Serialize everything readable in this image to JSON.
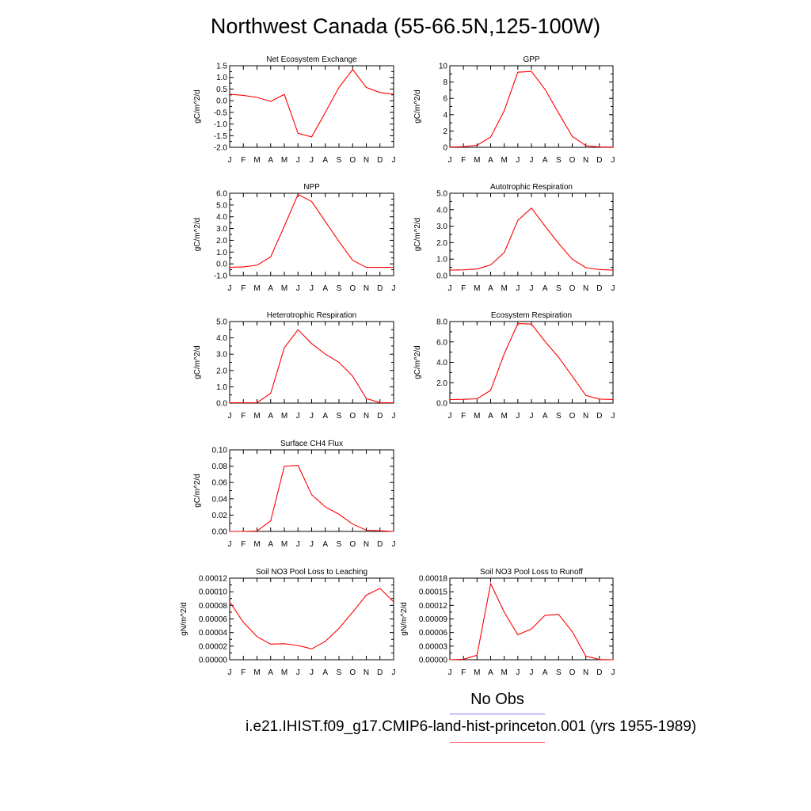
{
  "title": "Northwest Canada (55-66.5N,125-100W)",
  "legend": {
    "no_obs_label": "No Obs",
    "no_obs_color": "#7b7bf0",
    "case_label": "i.e21.IHIST.f09_g17.CMIP6-land-hist-princeton.001 (yrs 1955-1989)",
    "case_color": "#ff8080"
  },
  "line_color": "#ff0000",
  "chart_data": [
    {
      "type": "line",
      "title": "Net Ecosystem Exchange",
      "ylabel": "gC/m^2/d",
      "x_ticks": [
        "J",
        "F",
        "M",
        "A",
        "M",
        "J",
        "J",
        "A",
        "S",
        "O",
        "N",
        "D",
        "J"
      ],
      "ylim": [
        -2.0,
        1.5
      ],
      "y_ticks": [
        "-2.0",
        "-1.5",
        "-1.0",
        "-0.5",
        "0.0",
        "0.5",
        "1.0",
        "1.5"
      ],
      "values": [
        0.28,
        0.23,
        0.14,
        -0.03,
        0.27,
        -1.4,
        -1.55,
        -0.5,
        0.57,
        1.34,
        0.57,
        0.35,
        0.28
      ]
    },
    {
      "type": "line",
      "title": "GPP",
      "ylabel": "gC/m^2/d",
      "x_ticks": [
        "J",
        "F",
        "M",
        "A",
        "M",
        "J",
        "J",
        "A",
        "S",
        "O",
        "N",
        "D",
        "J"
      ],
      "ylim": [
        0,
        10
      ],
      "y_ticks": [
        "0",
        "2",
        "4",
        "6",
        "8",
        "10"
      ],
      "values": [
        0.03,
        0.08,
        0.25,
        1.25,
        4.5,
        9.2,
        9.3,
        7.1,
        4.2,
        1.35,
        0.2,
        0.04,
        0.03
      ]
    },
    {
      "type": "line",
      "title": "NPP",
      "ylabel": "gC/m^2/d",
      "x_ticks": [
        "J",
        "F",
        "M",
        "A",
        "M",
        "J",
        "J",
        "A",
        "S",
        "O",
        "N",
        "D",
        "J"
      ],
      "ylim": [
        -1.0,
        6.0
      ],
      "y_ticks": [
        "-1.0",
        "0.0",
        "1.0",
        "2.0",
        "3.0",
        "4.0",
        "5.0",
        "6.0"
      ],
      "values": [
        -0.3,
        -0.25,
        -0.12,
        0.6,
        3.2,
        5.9,
        5.3,
        3.6,
        1.9,
        0.3,
        -0.3,
        -0.3,
        -0.3
      ]
    },
    {
      "type": "line",
      "title": "Autotrophic Respiration",
      "ylabel": "gC/m^2/d",
      "x_ticks": [
        "J",
        "F",
        "M",
        "A",
        "M",
        "J",
        "J",
        "A",
        "S",
        "O",
        "N",
        "D",
        "J"
      ],
      "ylim": [
        0,
        5.0
      ],
      "y_ticks": [
        "0.0",
        "1.0",
        "2.0",
        "3.0",
        "4.0",
        "5.0"
      ],
      "values": [
        0.33,
        0.35,
        0.4,
        0.65,
        1.4,
        3.35,
        4.1,
        3.0,
        1.95,
        1.0,
        0.48,
        0.37,
        0.33
      ]
    },
    {
      "type": "line",
      "title": "Heterotrophic Respiration",
      "ylabel": "gC/m^2/d",
      "x_ticks": [
        "J",
        "F",
        "M",
        "A",
        "M",
        "J",
        "J",
        "A",
        "S",
        "O",
        "N",
        "D",
        "J"
      ],
      "ylim": [
        0,
        5.0
      ],
      "y_ticks": [
        "0.0",
        "1.0",
        "2.0",
        "3.0",
        "4.0",
        "5.0"
      ],
      "values": [
        0.02,
        0.02,
        0.03,
        0.6,
        3.4,
        4.5,
        3.65,
        3.0,
        2.5,
        1.65,
        0.28,
        0.03,
        0.02
      ]
    },
    {
      "type": "line",
      "title": "Ecosystem Respiration",
      "ylabel": "gC/m^2/d",
      "x_ticks": [
        "J",
        "F",
        "M",
        "A",
        "M",
        "J",
        "J",
        "A",
        "S",
        "O",
        "N",
        "D",
        "J"
      ],
      "ylim": [
        0,
        8.0
      ],
      "y_ticks": [
        "0.0",
        "2.0",
        "4.0",
        "6.0",
        "8.0"
      ],
      "values": [
        0.35,
        0.37,
        0.43,
        1.25,
        4.85,
        7.8,
        7.75,
        6.05,
        4.5,
        2.65,
        0.75,
        0.4,
        0.35
      ]
    },
    {
      "type": "line",
      "title": "Surface CH4 Flux",
      "ylabel": "gC/m^2/d",
      "x_ticks": [
        "J",
        "F",
        "M",
        "A",
        "M",
        "J",
        "J",
        "A",
        "S",
        "O",
        "N",
        "D",
        "J"
      ],
      "ylim": [
        0,
        0.1
      ],
      "y_ticks": [
        "0.00",
        "0.02",
        "0.04",
        "0.06",
        "0.08",
        "0.10"
      ],
      "values": [
        0.0,
        0.0,
        0.0005,
        0.013,
        0.08,
        0.081,
        0.045,
        0.03,
        0.021,
        0.009,
        0.0015,
        0.0008,
        0.0
      ]
    },
    {
      "type": "line",
      "title": "Soil NO3 Pool Loss to Leaching",
      "ylabel": "gN/m^2/d",
      "x_ticks": [
        "J",
        "F",
        "M",
        "A",
        "M",
        "J",
        "J",
        "A",
        "S",
        "O",
        "N",
        "D",
        "J"
      ],
      "ylim": [
        0,
        0.00012
      ],
      "y_ticks": [
        "0.00000",
        "0.00002",
        "0.00004",
        "0.00006",
        "0.00008",
        "0.00010",
        "0.00012"
      ],
      "values": [
        8.5e-05,
        5.5e-05,
        3.4e-05,
        2.3e-05,
        2.35e-05,
        2.1e-05,
        1.6e-05,
        2.7e-05,
        4.6e-05,
        7e-05,
        9.5e-05,
        0.000105,
        8.5e-05
      ]
    },
    {
      "type": "line",
      "title": "Soil NO3 Pool Loss to Runoff",
      "ylabel": "gN/m^2/d",
      "x_ticks": [
        "J",
        "F",
        "M",
        "A",
        "M",
        "J",
        "J",
        "A",
        "S",
        "O",
        "N",
        "D",
        "J"
      ],
      "ylim": [
        0,
        0.00018
      ],
      "y_ticks": [
        "0.00000",
        "0.00003",
        "0.00006",
        "0.00009",
        "0.00012",
        "0.00015",
        "0.00018"
      ],
      "values": [
        0.0,
        1e-06,
        1e-05,
        0.000168,
        0.000105,
        5.5e-05,
        6.8e-05,
        9.8e-05,
        0.0001,
        6.2e-05,
        8e-06,
        5e-07,
        0.0
      ]
    }
  ]
}
